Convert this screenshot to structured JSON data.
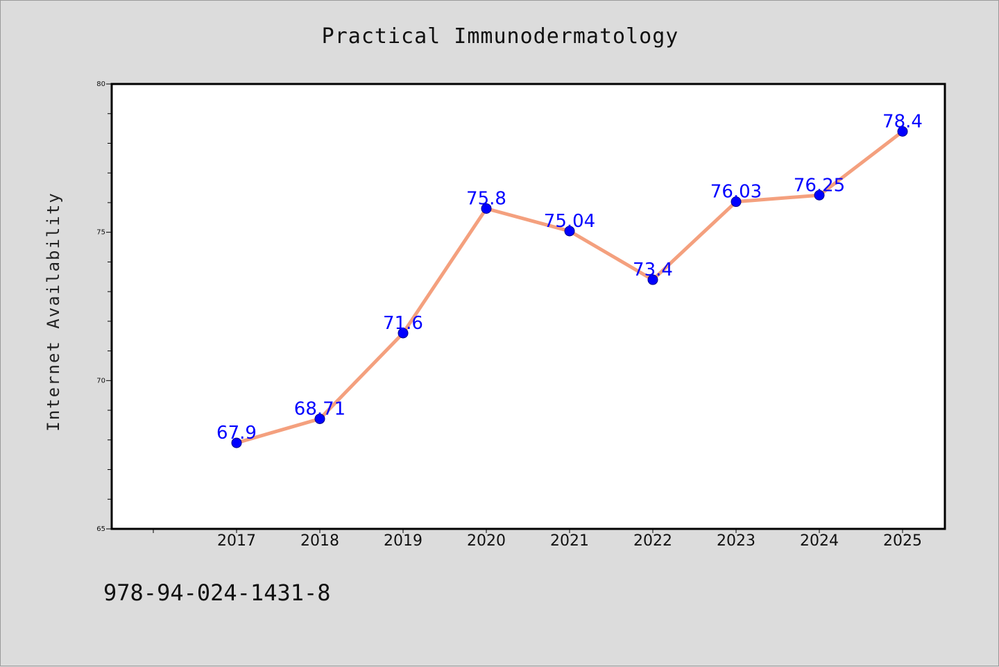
{
  "chart_data": {
    "type": "line",
    "title": "Practical Immunodermatology",
    "xlabel": "",
    "ylabel": "Internet Availability",
    "categories": [
      "2017",
      "2018",
      "2019",
      "2020",
      "2021",
      "2022",
      "2023",
      "2024",
      "2025"
    ],
    "series": [
      {
        "values": [
          67.9,
          68.71,
          71.6,
          75.8,
          75.04,
          73.4,
          76.03,
          76.25,
          78.4
        ],
        "data_labels": [
          "67.9",
          "68.71",
          "71.6",
          "75.8",
          "75.04",
          "73.4",
          "76.03",
          "76.25",
          "78.4"
        ],
        "line_color": "#f4a07e",
        "marker_color": "#0000ff",
        "label_color": "#0000ff"
      }
    ],
    "ylim": [
      65,
      80
    ],
    "yticks": [
      "65",
      "70",
      "75",
      "80"
    ],
    "grid": false,
    "plot_background": "#ffffff",
    "figure_background": "#dcdcdc"
  },
  "footer": {
    "isbn": "978-94-024-1431-8"
  }
}
